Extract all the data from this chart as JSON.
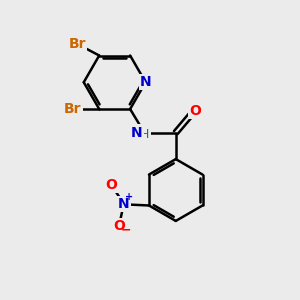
{
  "bg_color": "#ebebeb",
  "atom_colors": {
    "C": "#000000",
    "N_blue": "#0000cc",
    "N_teal": "#008080",
    "O": "#ff0000",
    "Br": "#cc6600",
    "H": "#555555"
  },
  "bond_color": "#000000",
  "bond_width": 1.8,
  "figsize": [
    3.0,
    3.0
  ],
  "dpi": 100,
  "xlim": [
    0,
    10
  ],
  "ylim": [
    0,
    10
  ]
}
